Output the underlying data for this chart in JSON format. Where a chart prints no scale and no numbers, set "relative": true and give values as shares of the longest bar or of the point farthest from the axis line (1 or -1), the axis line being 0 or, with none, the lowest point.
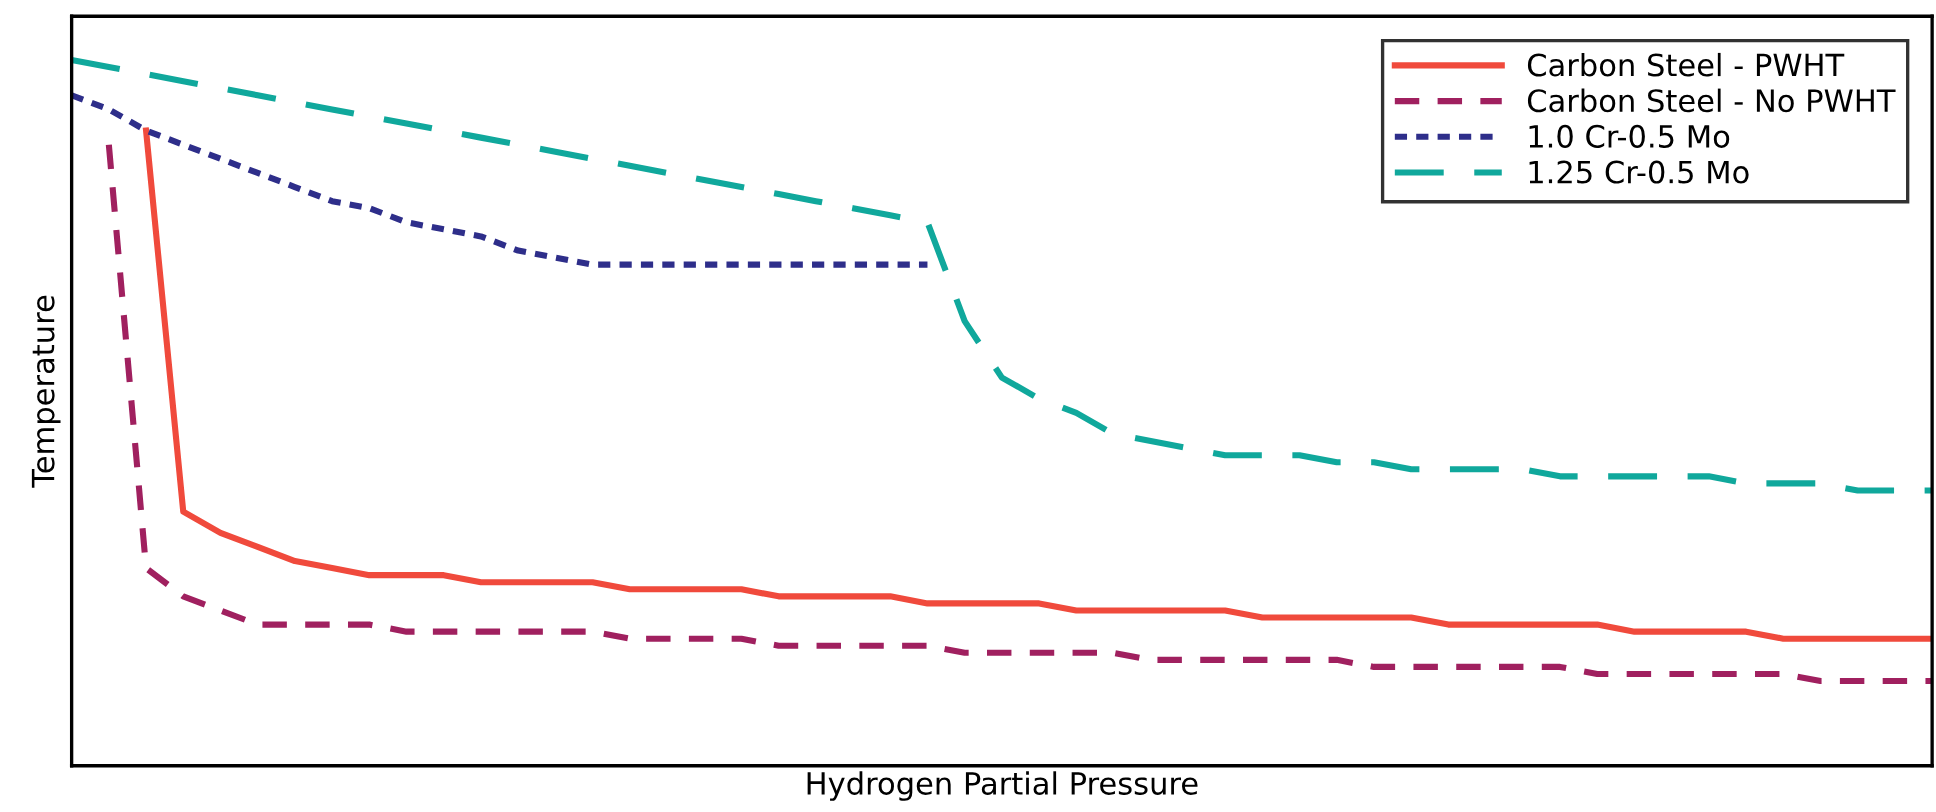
{
  "chart_data": {
    "type": "line",
    "relative": true,
    "xlabel": "Hydrogen Partial Pressure",
    "ylabel": "Temperature",
    "tick_labels": false,
    "grid": false,
    "legend": "top right",
    "categories": [
      null,
      null,
      null,
      null,
      null,
      null,
      null,
      null,
      null,
      null,
      null,
      null,
      null,
      null,
      null,
      null,
      null,
      null,
      null,
      null,
      null,
      null,
      null,
      null,
      null,
      null,
      null,
      null,
      null,
      null,
      null,
      null,
      null,
      null,
      null,
      null,
      null,
      null,
      null,
      null,
      null,
      null,
      null,
      null,
      null,
      null,
      null,
      null,
      null,
      null,
      null
    ],
    "series": [
      {
        "name": "Carbon Steel - PWHT",
        "color": "#f04a3c",
        "line_style": "solid",
        "values": [
          null,
          null,
          0.9,
          0.36,
          0.33,
          0.31,
          0.29,
          0.28,
          0.27,
          0.27,
          0.27,
          0.26,
          0.26,
          0.26,
          0.26,
          0.25,
          0.25,
          0.25,
          0.25,
          0.24,
          0.24,
          0.24,
          0.24,
          0.23,
          0.23,
          0.23,
          0.23,
          0.22,
          0.22,
          0.22,
          0.22,
          0.22,
          0.21,
          0.21,
          0.21,
          0.21,
          0.21,
          0.2,
          0.2,
          0.2,
          0.2,
          0.2,
          0.19,
          0.19,
          0.19,
          0.19,
          0.18,
          0.18,
          0.18,
          0.18,
          0.18
        ]
      },
      {
        "name": "Carbon Steel - No PWHT",
        "color": "#a0205f",
        "line_style": "dashed",
        "values": [
          null,
          0.88,
          0.28,
          0.24,
          0.22,
          0.2,
          0.2,
          0.2,
          0.2,
          0.19,
          0.19,
          0.19,
          0.19,
          0.19,
          0.19,
          0.18,
          0.18,
          0.18,
          0.18,
          0.17,
          0.17,
          0.17,
          0.17,
          0.17,
          0.16,
          0.16,
          0.16,
          0.16,
          0.16,
          0.15,
          0.15,
          0.15,
          0.15,
          0.15,
          0.15,
          0.14,
          0.14,
          0.14,
          0.14,
          0.14,
          0.14,
          0.13,
          0.13,
          0.13,
          0.13,
          0.13,
          0.13,
          0.12,
          0.12,
          0.12,
          0.12
        ]
      },
      {
        "name": "1.0 Cr-0.5 Mo",
        "color": "#2e2e8a",
        "line_style": "dotted",
        "values": [
          0.95,
          0.93,
          0.9,
          0.88,
          0.86,
          0.84,
          0.82,
          0.8,
          0.79,
          0.77,
          0.76,
          0.75,
          0.73,
          0.72,
          0.71,
          0.71,
          0.71,
          0.71,
          0.71,
          0.71,
          0.71,
          0.71,
          0.71,
          0.71,
          null,
          null,
          null,
          null,
          null,
          null,
          null,
          null,
          null,
          null,
          null,
          null,
          null,
          null,
          null,
          null,
          null,
          null,
          null,
          null,
          null,
          null,
          null,
          null,
          null,
          null,
          null
        ]
      },
      {
        "name": "1.25 Cr-0.5 Mo",
        "color": "#10a89c",
        "line_style": "dashed",
        "values": [
          1.0,
          0.99,
          0.98,
          0.97,
          0.96,
          0.95,
          0.94,
          0.93,
          0.92,
          0.91,
          0.9,
          0.89,
          0.88,
          0.87,
          0.86,
          0.85,
          0.84,
          0.83,
          0.82,
          0.81,
          0.8,
          0.79,
          0.78,
          0.77,
          0.63,
          0.55,
          0.52,
          0.5,
          0.47,
          0.46,
          0.45,
          0.44,
          0.44,
          0.44,
          0.43,
          0.43,
          0.42,
          0.42,
          0.42,
          0.42,
          0.41,
          0.41,
          0.41,
          0.41,
          0.41,
          0.4,
          0.4,
          0.4,
          0.39,
          0.39,
          0.39
        ]
      }
    ]
  }
}
